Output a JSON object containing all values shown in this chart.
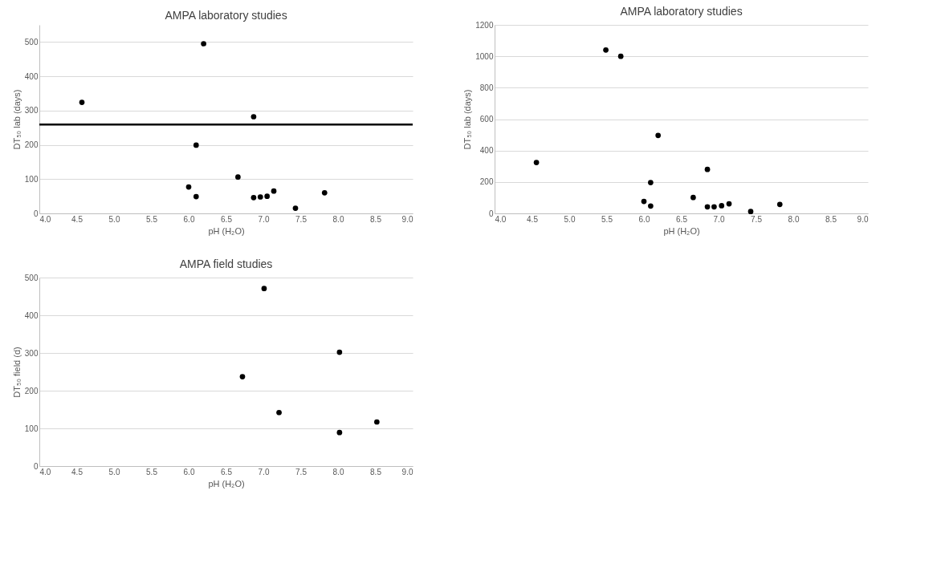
{
  "chart_data": [
    {
      "type": "scatter",
      "title": "AMPA laboratory studies",
      "xlabel": "pH (H₂O)",
      "ylabel": "DT₅₀ lab (days)",
      "xlim": [
        4.0,
        9.0
      ],
      "xticks": [
        {
          "value": 4,
          "label": "4.0"
        },
        {
          "value": 4.5,
          "label": "4.5"
        },
        {
          "value": 5,
          "label": "5.0"
        },
        {
          "value": 5.5,
          "label": "5.5"
        },
        {
          "value": 6,
          "label": "6.0"
        },
        {
          "value": 6.5,
          "label": "6.5"
        },
        {
          "value": 7,
          "label": "7.0"
        },
        {
          "value": 7.5,
          "label": "7.5"
        },
        {
          "value": 8,
          "label": "8.0"
        },
        {
          "value": 8.5,
          "label": "8.5"
        },
        {
          "value": 9,
          "label": "9.0"
        }
      ],
      "ylim": [
        0,
        550
      ],
      "yticks": [
        0,
        100,
        200,
        300,
        400,
        500
      ],
      "grid": "y",
      "marker": "circle",
      "series": [
        {
          "color": "#000000",
          "x": [
            4.57,
            6.2,
            6.87,
            6.1,
            6.66,
            6.0,
            6.1,
            6.87,
            6.96,
            7.05,
            7.14,
            7.43,
            7.82
          ],
          "values": [
            324,
            495,
            282,
            199,
            106,
            77,
            49,
            46,
            48,
            50,
            65,
            15,
            60
          ]
        }
      ],
      "ref_lines": [
        {
          "axis": "y",
          "value": 259,
          "color": "#000000"
        }
      ]
    },
    {
      "type": "scatter",
      "title": "AMPA laboratory studies",
      "xlabel": "pH (H₂O)",
      "ylabel": "DT₅₀ lab (days)",
      "xlim": [
        4.0,
        9.0
      ],
      "xticks": [
        {
          "value": 4,
          "label": "4.0"
        },
        {
          "value": 4.5,
          "label": "4.5"
        },
        {
          "value": 5,
          "label": "5.0"
        },
        {
          "value": 5.5,
          "label": "5.5"
        },
        {
          "value": 6,
          "label": "6.0"
        },
        {
          "value": 6.5,
          "label": "6.5"
        },
        {
          "value": 7,
          "label": "7.0"
        },
        {
          "value": 7.5,
          "label": "7.5"
        },
        {
          "value": 8,
          "label": "8.0"
        },
        {
          "value": 8.5,
          "label": "8.5"
        },
        {
          "value": 9,
          "label": "9.0"
        }
      ],
      "ylim": [
        0,
        1200
      ],
      "yticks": [
        0,
        200,
        400,
        600,
        800,
        1000,
        1200
      ],
      "grid": "y",
      "marker": "circle",
      "series": [
        {
          "color": "#000000",
          "x": [
            4.56,
            5.49,
            5.69,
            6.19,
            6.85,
            6.09,
            6.66,
            6.0,
            6.09,
            6.85,
            6.94,
            7.04,
            7.14,
            7.43,
            7.82
          ],
          "values": [
            324,
            1040,
            1000,
            496,
            280,
            196,
            101,
            76,
            47,
            42,
            42,
            49,
            61,
            12,
            57
          ]
        }
      ]
    },
    {
      "type": "scatter",
      "title": "AMPA field studies",
      "xlabel": "pH (H₂O)",
      "ylabel": "DT₅₀ field (d)",
      "xlim": [
        4.0,
        9.0
      ],
      "xticks": [
        {
          "value": 4,
          "label": "4.0"
        },
        {
          "value": 4.5,
          "label": "4.5"
        },
        {
          "value": 5,
          "label": "5.0"
        },
        {
          "value": 5.5,
          "label": "5.5"
        },
        {
          "value": 6,
          "label": "6.0"
        },
        {
          "value": 6.5,
          "label": "6.5"
        },
        {
          "value": 7,
          "label": "7.0"
        },
        {
          "value": 7.5,
          "label": "7.5"
        },
        {
          "value": 8,
          "label": "8.0"
        },
        {
          "value": 8.5,
          "label": "8.5"
        },
        {
          "value": 9,
          "label": "9.0"
        }
      ],
      "ylim": [
        0,
        500
      ],
      "yticks": [
        0,
        100,
        200,
        300,
        400,
        500
      ],
      "grid": "y",
      "marker": "circle",
      "series": [
        {
          "color": "#000000",
          "x": [
            7.01,
            8.02,
            6.72,
            7.21,
            8.52,
            8.02
          ],
          "values": [
            471,
            302,
            237,
            142,
            117,
            89
          ]
        }
      ]
    }
  ]
}
